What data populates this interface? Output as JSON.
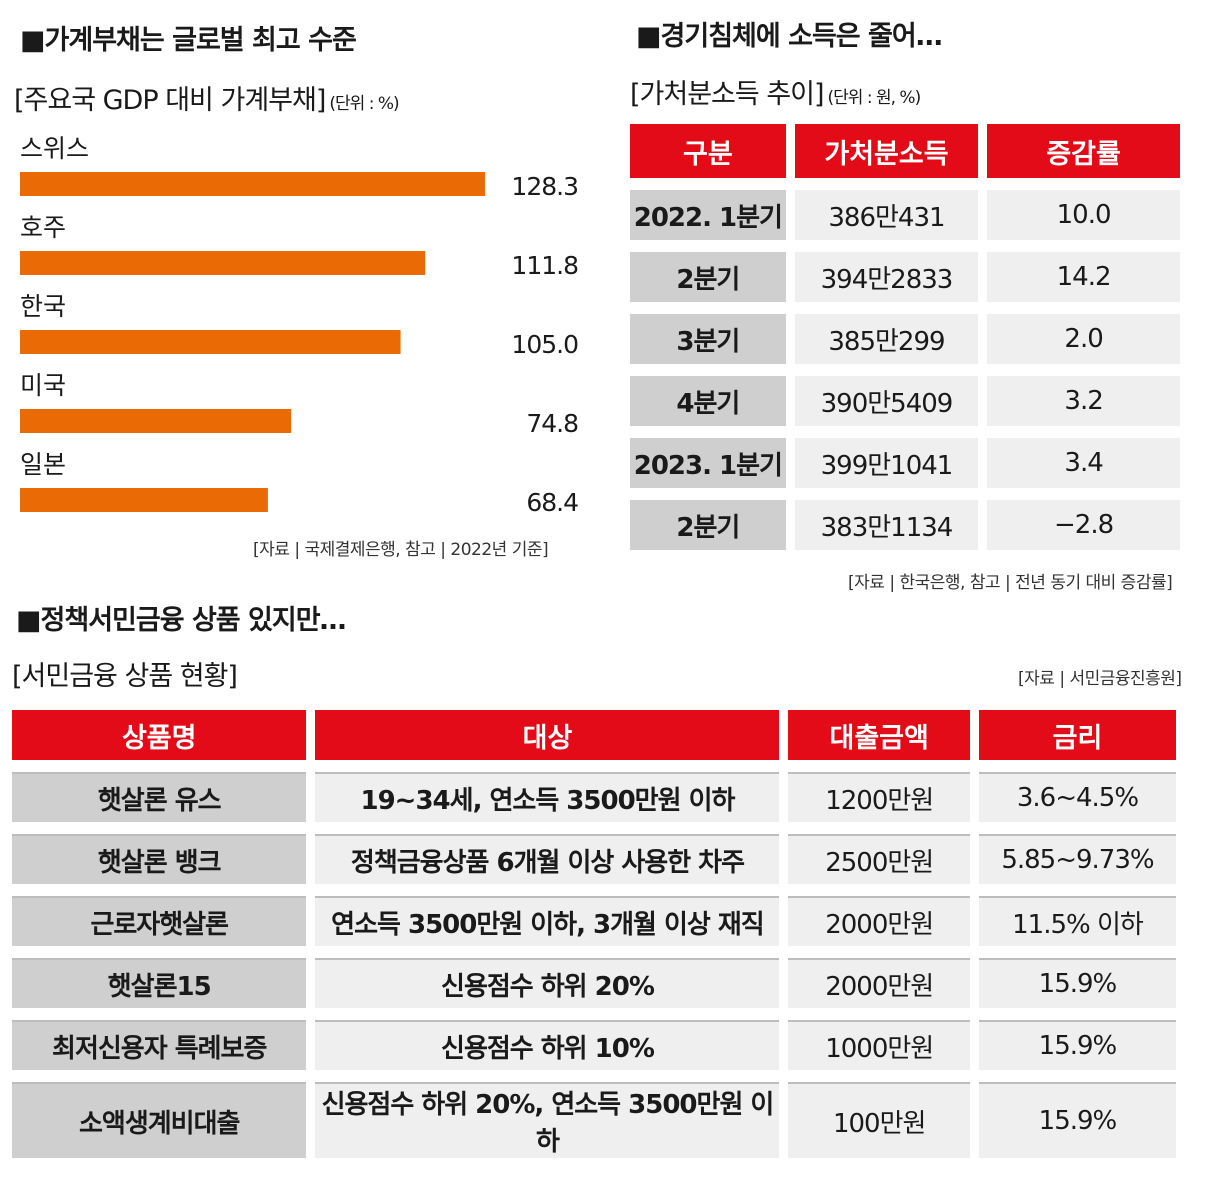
{
  "chart_data": {
    "type": "bar",
    "orientation": "horizontal",
    "title": "■가계부채는 글로벌 최고 수준",
    "subtitle": "[주요국 GDP 대비 가계부채]",
    "unit": "(단위 : %)",
    "categories": [
      "스위스",
      "호주",
      "한국",
      "미국",
      "일본"
    ],
    "values": [
      128.3,
      111.8,
      105.0,
      74.8,
      68.4
    ],
    "value_labels": [
      "128.3",
      "111.8",
      "105.0",
      "74.8",
      "68.4"
    ],
    "bar_color": "#ea6a06",
    "xlim": [
      0,
      128.3
    ],
    "source": "[자료 | 국제결제은행, 참고 | 2022년 기준]"
  },
  "income": {
    "title": "■경기침체에 소득은 줄어…",
    "subtitle": "[가처분소득 추이]",
    "unit": "(단위 : 원, %)",
    "headers": [
      "구분",
      "가처분소득",
      "증감률"
    ],
    "rows": [
      [
        "2022. 1분기",
        "386만431",
        "10.0"
      ],
      [
        "2분기",
        "394만2833",
        "14.2"
      ],
      [
        "3분기",
        "385만299",
        "2.0"
      ],
      [
        "4분기",
        "390만5409",
        "3.2"
      ],
      [
        "2023. 1분기",
        "399만1041",
        "3.4"
      ],
      [
        "2분기",
        "383만1134",
        "−2.8"
      ]
    ],
    "source": "[자료 | 한국은행, 참고 | 전년 동기 대비 증감률]"
  },
  "loans": {
    "title": "■정책서민금융 상품 있지만…",
    "subtitle": "[서민금융 상품 현황]",
    "source": "[자료 | 서민금융진흥원]",
    "headers": [
      "상품명",
      "대상",
      "대출금액",
      "금리"
    ],
    "rows": [
      [
        "햇살론 유스",
        "19~34세, 연소득 3500만원 이하",
        "1200만원",
        "3.6~4.5%"
      ],
      [
        "햇살론 뱅크",
        "정책금융상품 6개월 이상 사용한 차주",
        "2500만원",
        "5.85~9.73%"
      ],
      [
        "근로자햇살론",
        "연소득 3500만원 이하, 3개월 이상 재직",
        "2000만원",
        "11.5% 이하"
      ],
      [
        "햇살론15",
        "신용점수 하위 20%",
        "2000만원",
        "15.9%"
      ],
      [
        "최저신용자 특례보증",
        "신용점수 하위 10%",
        "1000만원",
        "15.9%"
      ],
      [
        "소액생계비대출",
        "신용점수 하위 20%, 연소득 3500만원 이하",
        "100만원",
        "15.9%"
      ]
    ]
  }
}
